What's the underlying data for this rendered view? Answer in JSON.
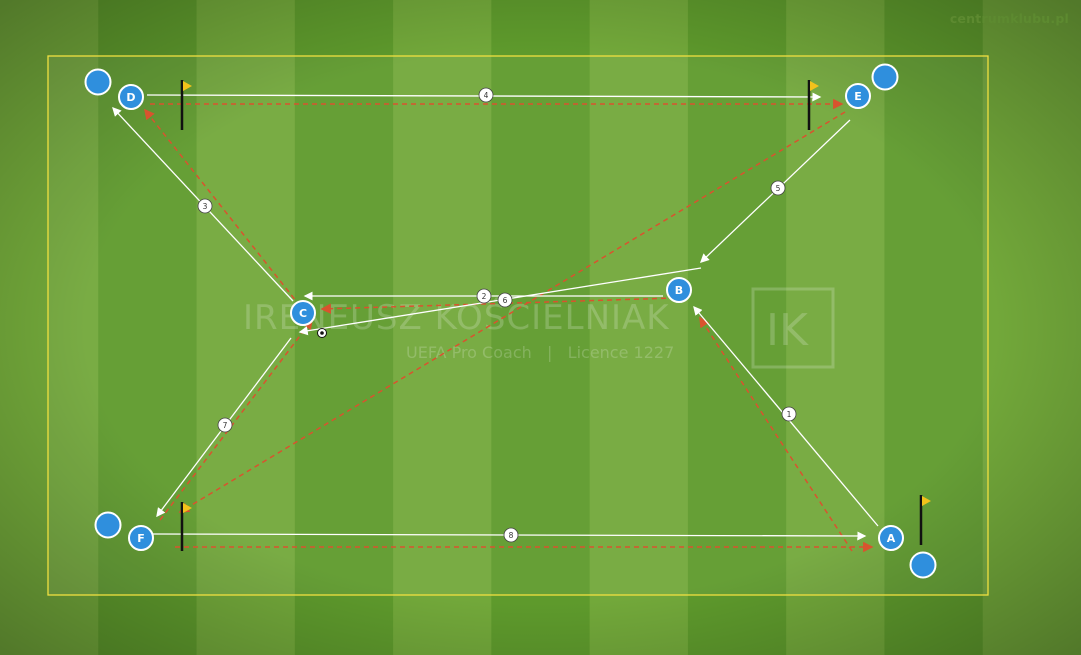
{
  "site": {
    "credit": "centrumklubu.pl"
  },
  "watermark": {
    "name": "IRENEUSZ KOŚCIELNIAK",
    "subtitle": "UEFA Pro Coach   |   Licence 1227",
    "logo_text": "IK"
  },
  "players": [
    {
      "label": "D",
      "role": "starter"
    },
    {
      "label": "E",
      "role": "starter"
    },
    {
      "label": "B",
      "role": "starter"
    },
    {
      "label": "C",
      "role": "starter"
    },
    {
      "label": "F",
      "role": "starter"
    },
    {
      "label": "A",
      "role": "starter"
    }
  ],
  "waiting_players": 4,
  "flags": 4,
  "passes": [
    {
      "step": "1"
    },
    {
      "step": "2"
    },
    {
      "step": "3"
    },
    {
      "step": "4"
    },
    {
      "step": "5"
    },
    {
      "step": "6"
    },
    {
      "step": "7"
    },
    {
      "step": "8"
    }
  ],
  "colors": {
    "pitch_light": "#72a83a",
    "pitch_dark": "#5e9a2c",
    "boundary": "#f0e040",
    "player_fill": "#2f8fdd",
    "player_stroke": "#ffffff",
    "pass_line": "#ffffff",
    "run_line": "#d9532e",
    "flag": "#f2c21b"
  },
  "icons": {
    "ball": "soccer-ball-icon",
    "flag": "corner-flag-icon"
  }
}
